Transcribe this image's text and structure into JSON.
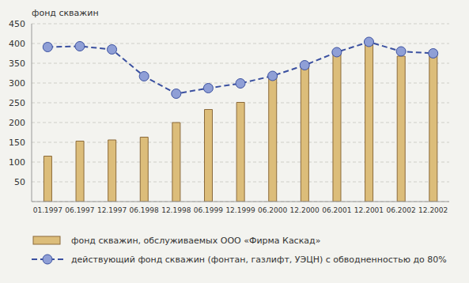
{
  "chart_data": {
    "type": "bar",
    "y_label": "фонд скважин",
    "categories": [
      "01.1997",
      "06.1997",
      "12.1997",
      "06.1998",
      "12.1998",
      "06.1999",
      "12.1999",
      "06.2000",
      "12.2000",
      "06.2001",
      "12.2001",
      "06.2002",
      "12.2002"
    ],
    "series": [
      {
        "name": "фонд скважин, обслуживаемых ООО «Фирма Каскад»",
        "type": "bar",
        "color": "#dcbd7a",
        "values": [
          115,
          153,
          156,
          163,
          200,
          233,
          251,
          318,
          345,
          374,
          401,
          368,
          378
        ]
      },
      {
        "name": "действующий фонд скважин (фонтан, газлифт, УЭЦН) с обводненностью до 80%",
        "type": "line",
        "color": "#3a50a0",
        "line_style": "dashed",
        "marker": "circle",
        "values": [
          391,
          393,
          385,
          317,
          273,
          287,
          299,
          318,
          345,
          378,
          404,
          380,
          375
        ]
      }
    ],
    "ylim": [
      0,
      450
    ],
    "yticks": [
      50,
      100,
      150,
      200,
      250,
      300,
      350,
      400,
      450
    ],
    "grid": true
  }
}
